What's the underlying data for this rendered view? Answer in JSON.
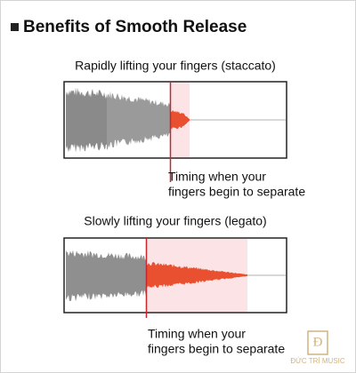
{
  "header": {
    "title": "Benefits of Smooth Release"
  },
  "panels": [
    {
      "label": "Rapidly lifting your fingers (staccato)",
      "caption": [
        "Timing when your",
        "fingers begin to separate"
      ]
    },
    {
      "label": "Slowly lifting your fingers (legato)",
      "caption": [
        "Timing when your",
        "fingers begin to separate"
      ]
    }
  ],
  "logo": {
    "text": "ĐỨC TRÍ MUSIC"
  }
}
